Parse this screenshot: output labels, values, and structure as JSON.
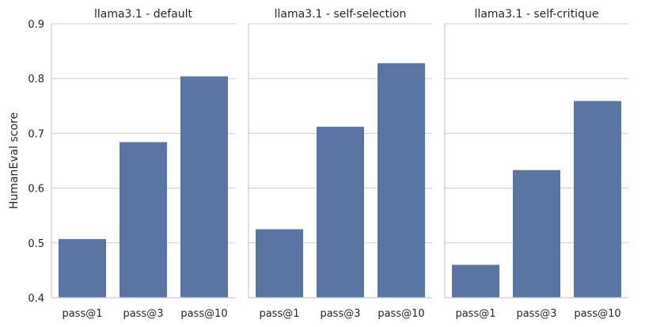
{
  "chart_data": {
    "type": "bar",
    "ylabel": "HumanEval score",
    "ylim": [
      0.4,
      0.9
    ],
    "yticks": [
      "0.4",
      "0.5",
      "0.6",
      "0.7",
      "0.8",
      "0.9"
    ],
    "grid": true,
    "bar_color": "#5975a4",
    "categories": [
      "pass@1",
      "pass@3",
      "pass@10"
    ],
    "panels": [
      {
        "title": "llama3.1 - default",
        "values": [
          0.507,
          0.684,
          0.804
        ]
      },
      {
        "title": "llama3.1 - self-selection",
        "values": [
          0.525,
          0.712,
          0.828
        ]
      },
      {
        "title": "llama3.1 - self-critique",
        "values": [
          0.46,
          0.633,
          0.759
        ]
      }
    ]
  }
}
